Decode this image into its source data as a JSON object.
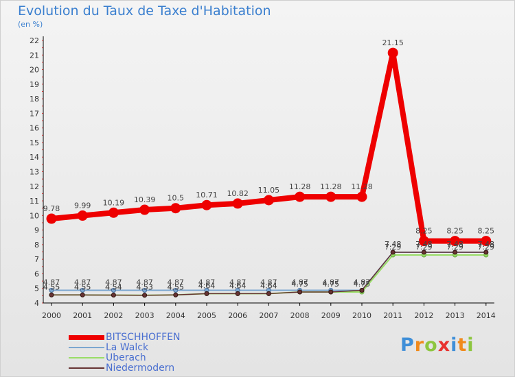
{
  "title": "Evolution du Taux de Taxe d'Habitation",
  "unit": "(en %)",
  "logo": {
    "letters": [
      "P",
      "r",
      "o",
      "x",
      "i",
      "t",
      "i"
    ],
    "colors": [
      "#3f8fd8",
      "#f08a1c",
      "#8dc63f",
      "#e8322f",
      "#3f8fd8",
      "#f08a1c",
      "#8dc63f"
    ]
  },
  "chart_data": {
    "type": "line",
    "x": [
      "2000",
      "2001",
      "2002",
      "2003",
      "2004",
      "2005",
      "2006",
      "2007",
      "2008",
      "2009",
      "2010",
      "2011",
      "2012",
      "2013",
      "2014"
    ],
    "ylim": [
      4,
      22
    ],
    "yticks": [
      4,
      5,
      6,
      7,
      8,
      9,
      10,
      11,
      12,
      13,
      14,
      15,
      16,
      17,
      18,
      19,
      20,
      21,
      22
    ],
    "grid": false,
    "legend": "bottom-left",
    "series": [
      {
        "name": "BITSCHHOFFEN",
        "color": "#ee0000",
        "values": [
          9.78,
          9.99,
          10.19,
          10.39,
          10.5,
          10.71,
          10.82,
          11.05,
          11.28,
          11.28,
          11.28,
          21.15,
          8.25,
          8.25,
          8.25
        ],
        "labels": [
          "9.78",
          "9.99",
          "10.19",
          "10.39",
          "10.5",
          "10.71",
          "10.82",
          "11.05",
          "11.28",
          "11.28",
          "11.28",
          "21.15",
          "8.25",
          "8.25",
          "8.25"
        ]
      },
      {
        "name": "La Walck",
        "color": "#7ba7d0",
        "values": [
          4.87,
          4.87,
          4.87,
          4.87,
          4.87,
          4.87,
          4.87,
          4.87,
          4.87,
          4.87,
          4.87,
          7.48,
          7.48,
          7.48,
          7.48
        ],
        "labels": [
          "4.87",
          "4.87",
          "4.87",
          "4.87",
          "4.87",
          "4.87",
          "4.87",
          "4.87",
          "4.87",
          "4.87",
          "4.87",
          "7.48",
          "7.48",
          "7.48",
          "7.48"
        ]
      },
      {
        "name": "Uberach",
        "color": "#99dd66",
        "values": [
          4.55,
          4.55,
          4.54,
          4.53,
          4.55,
          4.64,
          4.64,
          4.64,
          4.75,
          4.75,
          4.75,
          7.29,
          7.29,
          7.29,
          7.29
        ],
        "labels": [
          "4.55",
          "4.55",
          "4.54",
          "4.53",
          "4.55",
          "4.64",
          "4.64",
          "4.64",
          "4.75",
          "4.75",
          "4.75",
          "7.29",
          "7.29",
          "7.29",
          "7.29"
        ]
      },
      {
        "name": "Niedermodern",
        "color": "#663333",
        "values": [
          4.55,
          4.55,
          4.54,
          4.53,
          4.55,
          4.64,
          4.64,
          4.64,
          4.75,
          4.75,
          4.87,
          7.48,
          7.48,
          7.48,
          7.48
        ],
        "labels": [
          "4.55",
          "4.55",
          "4.54",
          "4.53",
          "4.55",
          "4.64",
          "4.64",
          "4.64",
          "4.75",
          "4.75",
          "4.87",
          "7.48",
          "7.48",
          "7.48",
          "7.48"
        ]
      }
    ]
  }
}
